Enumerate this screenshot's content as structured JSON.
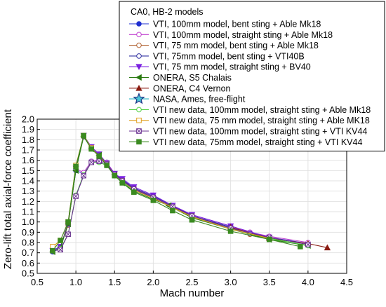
{
  "chart_data": {
    "type": "line",
    "title": "",
    "xlabel": "Mach number",
    "ylabel": "Zero-lift total axial-force coefficient",
    "xlim": [
      0.5,
      4.5
    ],
    "ylim": [
      0.5,
      2.0
    ],
    "xticks": [
      "0.5",
      "1.0",
      "1.5",
      "2.0",
      "2.5",
      "3.0",
      "3.5",
      "4.0",
      "4.5"
    ],
    "yticks": [
      "0.5",
      "0.6",
      "0.7",
      "0.8",
      "0.9",
      "1.0",
      "1.1",
      "1.2",
      "1.3",
      "1.4",
      "1.5",
      "1.6",
      "1.7",
      "1.8",
      "1.9",
      "2.0"
    ],
    "grid": true,
    "legend_position": "top-right",
    "legend_title": "CA0, HB-2 models",
    "series": [
      {
        "name": "VTI, 100mm model, bent sting + Able Mk18",
        "color": "#1f2fd0",
        "marker": "circle",
        "filled": true,
        "points": [
          [
            0.7,
            0.71
          ],
          [
            0.8,
            0.74
          ],
          [
            0.9,
            0.99
          ],
          [
            1.0,
            1.5
          ],
          [
            1.1,
            1.47
          ],
          [
            1.2,
            1.59
          ],
          [
            1.3,
            1.6
          ],
          [
            1.4,
            1.58
          ],
          [
            1.5,
            1.46
          ],
          [
            1.6,
            1.4
          ],
          [
            1.75,
            1.31
          ],
          [
            2.0,
            1.24
          ],
          [
            2.25,
            1.15
          ],
          [
            2.5,
            1.06
          ],
          [
            3.0,
            0.95
          ],
          [
            3.25,
            0.89
          ],
          [
            3.5,
            0.85
          ],
          [
            4.0,
            0.79
          ]
        ]
      },
      {
        "name": "VTI, 100mm model, straight sting + Able Mk18",
        "color": "#c040d0",
        "marker": "circle",
        "filled": false,
        "points": [
          [
            0.7,
            0.72
          ],
          [
            0.8,
            0.75
          ],
          [
            0.9,
            1.0
          ],
          [
            1.0,
            1.52
          ],
          [
            1.1,
            1.48
          ],
          [
            1.2,
            1.59
          ],
          [
            1.3,
            1.6
          ],
          [
            1.4,
            1.58
          ],
          [
            1.5,
            1.47
          ],
          [
            1.6,
            1.41
          ],
          [
            1.75,
            1.32
          ],
          [
            2.0,
            1.25
          ],
          [
            2.25,
            1.16
          ],
          [
            2.5,
            1.07
          ],
          [
            3.0,
            0.96
          ],
          [
            3.25,
            0.9
          ],
          [
            3.5,
            0.86
          ],
          [
            4.0,
            0.8
          ]
        ]
      },
      {
        "name": "VTI, 75 mm model, bent sting + Able Mk18",
        "color": "#b06030",
        "marker": "circle",
        "filled": false,
        "points": [
          [
            0.7,
            0.72
          ],
          [
            0.8,
            0.76
          ],
          [
            0.9,
            0.97
          ],
          [
            1.0,
            1.52
          ],
          [
            1.1,
            1.84
          ],
          [
            1.2,
            1.73
          ],
          [
            1.3,
            1.66
          ],
          [
            1.4,
            1.57
          ],
          [
            1.5,
            1.47
          ],
          [
            1.6,
            1.41
          ],
          [
            1.75,
            1.32
          ],
          [
            2.0,
            1.24
          ],
          [
            2.25,
            1.15
          ],
          [
            2.5,
            1.05
          ],
          [
            3.0,
            0.94
          ],
          [
            3.25,
            0.88
          ],
          [
            3.5,
            0.84
          ]
        ]
      },
      {
        "name": "VTI, 75mm model, bent sting + VTI40B",
        "color": "#3030a0",
        "marker": "circle",
        "filled": false,
        "points": [
          [
            0.7,
            0.72
          ],
          [
            0.8,
            0.76
          ],
          [
            0.9,
            0.98
          ],
          [
            1.0,
            1.51
          ],
          [
            1.1,
            1.83
          ],
          [
            1.2,
            1.72
          ],
          [
            1.3,
            1.65
          ],
          [
            1.4,
            1.56
          ],
          [
            1.5,
            1.46
          ],
          [
            1.6,
            1.41
          ],
          [
            1.75,
            1.33
          ],
          [
            2.0,
            1.25
          ],
          [
            2.25,
            1.16
          ],
          [
            2.5,
            1.06
          ],
          [
            3.0,
            0.95
          ],
          [
            3.25,
            0.89
          ],
          [
            3.5,
            0.85
          ]
        ]
      },
      {
        "name": "VTI, 75 mm model, straight sting + BV40",
        "color": "#7a20e0",
        "marker": "triangle-down",
        "filled": true,
        "points": [
          [
            0.7,
            0.72
          ],
          [
            0.8,
            0.76
          ],
          [
            0.9,
            0.98
          ],
          [
            1.0,
            1.52
          ],
          [
            1.1,
            1.84
          ],
          [
            1.2,
            1.73
          ],
          [
            1.3,
            1.66
          ],
          [
            1.4,
            1.57
          ],
          [
            1.5,
            1.47
          ],
          [
            1.6,
            1.42
          ],
          [
            1.75,
            1.34
          ],
          [
            2.0,
            1.26
          ],
          [
            2.25,
            1.16
          ],
          [
            2.5,
            1.07
          ],
          [
            3.0,
            0.96
          ],
          [
            3.5,
            0.85
          ]
        ]
      },
      {
        "name": "ONERA, S5 Chalais",
        "color": "#2a7a10",
        "marker": "triangle-left",
        "filled": true,
        "points": [
          [
            0.7,
            0.71
          ],
          [
            0.8,
            0.75
          ],
          [
            0.9,
            0.98
          ],
          [
            1.0,
            1.5
          ],
          [
            1.1,
            1.83
          ],
          [
            1.2,
            1.71
          ],
          [
            1.3,
            1.65
          ],
          [
            1.4,
            1.56
          ],
          [
            1.5,
            1.46
          ],
          [
            1.6,
            1.38
          ],
          [
            1.75,
            1.3
          ],
          [
            2.0,
            1.22
          ],
          [
            2.2,
            1.16
          ],
          [
            2.5,
            1.04
          ],
          [
            3.0,
            0.93
          ],
          [
            3.5,
            0.83
          ],
          [
            4.0,
            0.77
          ]
        ]
      },
      {
        "name": "ONERA, C4 Vernon",
        "color": "#8a1a10",
        "marker": "triangle-up",
        "filled": true,
        "points": [
          [
            3.0,
            0.95
          ],
          [
            3.5,
            0.84
          ],
          [
            4.0,
            0.79
          ],
          [
            4.25,
            0.75
          ]
        ]
      },
      {
        "name": "NASA, Ames, free-flight",
        "color": "#20b0c0",
        "marker": "star",
        "filled": true,
        "points": []
      },
      {
        "name": "VTI new data, 100mm model, straight sting + Able Mk18",
        "color": "#50d040",
        "marker": "circle",
        "filled": false,
        "points": [
          [
            0.7,
            0.72
          ],
          [
            0.8,
            0.74
          ],
          [
            0.9,
            0.88
          ],
          [
            1.0,
            1.26
          ],
          [
            1.1,
            1.46
          ],
          [
            1.2,
            1.58
          ],
          [
            1.3,
            1.58
          ],
          [
            1.4,
            1.55
          ],
          [
            1.5,
            1.45
          ],
          [
            1.6,
            1.39
          ],
          [
            1.75,
            1.31
          ],
          [
            2.0,
            1.23
          ],
          [
            2.25,
            1.14
          ],
          [
            2.5,
            1.05
          ],
          [
            3.0,
            0.93
          ],
          [
            3.5,
            0.84
          ],
          [
            4.0,
            0.77
          ]
        ]
      },
      {
        "name": "VTI new data, 75 mm model, straight sting + Able MK18",
        "color": "#e0a020",
        "marker": "square",
        "filled": false,
        "points": [
          [
            0.7,
            0.76
          ],
          [
            0.8,
            0.82
          ],
          [
            0.9,
            1.0
          ],
          [
            1.0,
            1.55
          ],
          [
            1.1,
            1.84
          ],
          [
            1.2,
            1.72
          ],
          [
            1.3,
            1.64
          ],
          [
            1.4,
            1.56
          ],
          [
            1.5,
            1.46
          ],
          [
            1.6,
            1.4
          ],
          [
            1.75,
            1.31
          ],
          [
            2.0,
            1.23
          ],
          [
            2.25,
            1.14
          ],
          [
            2.5,
            1.05
          ],
          [
            3.0,
            0.93
          ],
          [
            3.5,
            0.84
          ]
        ]
      },
      {
        "name": "VTI new data, 100mm model, straight sting + VTI KV44",
        "color": "#6a3090",
        "marker": "x-square",
        "filled": false,
        "points": [
          [
            0.7,
            0.72
          ],
          [
            0.8,
            0.73
          ],
          [
            0.9,
            0.88
          ],
          [
            1.0,
            1.25
          ],
          [
            1.1,
            1.45
          ],
          [
            1.2,
            1.58
          ],
          [
            1.3,
            1.59
          ],
          [
            1.4,
            1.56
          ],
          [
            1.5,
            1.46
          ],
          [
            1.6,
            1.4
          ],
          [
            1.75,
            1.32
          ],
          [
            2.0,
            1.24
          ],
          [
            2.25,
            1.15
          ],
          [
            2.5,
            1.06
          ],
          [
            3.0,
            0.94
          ],
          [
            3.5,
            0.85
          ],
          [
            4.0,
            0.78
          ]
        ]
      },
      {
        "name": "VTI new data, 75mm model, straight sting + VTI KV44",
        "color": "#3a8a20",
        "marker": "square",
        "filled": true,
        "points": [
          [
            0.7,
            0.72
          ],
          [
            0.8,
            0.82
          ],
          [
            0.9,
            1.0
          ],
          [
            1.0,
            1.54
          ],
          [
            1.1,
            1.84
          ],
          [
            1.2,
            1.71
          ],
          [
            1.3,
            1.64
          ],
          [
            1.4,
            1.55
          ],
          [
            1.5,
            1.45
          ],
          [
            1.6,
            1.38
          ],
          [
            1.75,
            1.29
          ],
          [
            2.0,
            1.21
          ],
          [
            2.25,
            1.11
          ],
          [
            2.5,
            1.02
          ],
          [
            3.0,
            0.91
          ],
          [
            3.5,
            0.83
          ],
          [
            3.9,
            0.76
          ]
        ]
      }
    ]
  }
}
